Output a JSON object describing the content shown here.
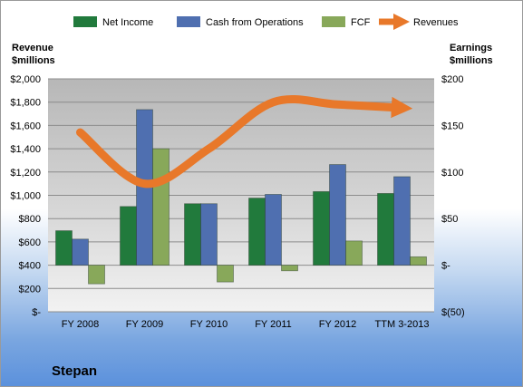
{
  "chart_data": {
    "type": "bar",
    "title": "Stepan",
    "categories": [
      "FY 2008",
      "FY 2009",
      "FY 2010",
      "FY 2011",
      "FY 2012",
      "TTM 3-2013"
    ],
    "series": [
      {
        "name": "Net Income",
        "axis": "right",
        "color": "#217a3c",
        "values": [
          37,
          63,
          66,
          72,
          79,
          77
        ]
      },
      {
        "name": "Cash from Operations",
        "axis": "right",
        "color": "#4f6fb0",
        "values": [
          28,
          167,
          66,
          76,
          108,
          95
        ]
      },
      {
        "name": "FCF",
        "axis": "right",
        "color": "#88a85a",
        "values": [
          -20,
          125,
          -18,
          -6,
          26,
          9
        ]
      },
      {
        "name": "Revenues",
        "axis": "left",
        "type": "line",
        "color": "#e8782a",
        "values": [
          1540,
          1100,
          1400,
          1800,
          1780,
          1750
        ]
      }
    ],
    "ylabel_left": "Revenue\n$millions",
    "ylabel_right": "Earnings\n$millions",
    "ylim_left": [
      0,
      2000
    ],
    "ylim_right": [
      -50,
      200
    ],
    "yticks_left": [
      "$-",
      "$200",
      "$400",
      "$600",
      "$800",
      "$1,000",
      "$1,200",
      "$1,400",
      "$1,600",
      "$1,800",
      "$2,000"
    ],
    "yticks_right": [
      "$(50)",
      "$-",
      "$50",
      "$100",
      "$150",
      "$200"
    ],
    "legend_position": "top",
    "grid": true,
    "colors": {
      "plot_area": "#c0c0c0",
      "gridline": "#8c8c8c"
    }
  }
}
